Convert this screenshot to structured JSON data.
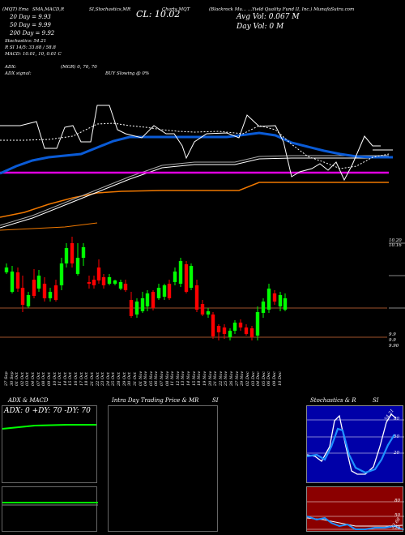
{
  "header": {
    "ticker_tag": "(MQT) Ema",
    "indicators_label": "SMA,MACD,R",
    "site_label": "SI,Stochastics,MR",
    "chart_title": "Charts MQT",
    "company": "(Blackrock Mu... ...Yield Quality Fund II, Inc.) MunafaSutra.com",
    "close": "CL: 10.02",
    "avg_vol": "Avg Vol: 0.067 M",
    "day_vol": "Day Vol: 0   M",
    "ma20": "20  Day = 9.93",
    "ma50": "50  Day = 9.99",
    "ma200": "200  Day = 9.92",
    "stochastics": "Stochastics: 54.21",
    "rsi_line": "R       SI 14/5: 33.68  / 58.8",
    "macd": "MACD: 10.01, 10, 0.01 C",
    "adx": "ADX:",
    "adx_signal": "ADX  signal:",
    "mgr": "(MGR) 0, 70, 70",
    "signal": "BUY Slowing @ 0%"
  },
  "price_axis": {
    "top_a": "10.20",
    "top_b": "10.16",
    "low_a": "9.9",
    "low_b": "9.9",
    "low_c": "9.90"
  },
  "x_labels": [
    "27 Sep",
    "30 Sep",
    "01 Oct",
    "02 Oct",
    "03 Oct",
    "04 Oct",
    "07 Oct",
    "08 Oct",
    "09 Oct",
    "10 Oct",
    "11 Oct",
    "14 Oct",
    "15 Oct",
    "16 Oct",
    "17 Oct",
    "18 Oct",
    "21 Oct",
    "22 Oct",
    "23 Oct",
    "24 Oct",
    "25 Oct",
    "28 Oct",
    "29 Oct",
    "30 Oct",
    "31 Oct",
    "01 Nov",
    "04 Nov",
    "05 Nov",
    "06 Nov",
    "07 Nov",
    "08 Nov",
    "11 Nov",
    "12 Nov",
    "13 Nov",
    "14 Nov",
    "15 Nov",
    "18 Nov",
    "19 Nov",
    "20 Nov",
    "21 Nov",
    "22 Nov",
    "25 Nov",
    "26 Nov",
    "27 Nov",
    "29 Nov",
    "02 Dec",
    "03 Dec",
    "04 Dec",
    "05 Dec",
    "06 Dec",
    "09 Dec",
    "10 Dec"
  ],
  "panels": {
    "adx_title": "ADX  & MACD",
    "adx_values": "ADX: 0  +DY: 70  -DY: 70",
    "intra_title": "Intra  Day Trading Price  & MR",
    "intra_si": "SI",
    "stoch_title": "Stochastics & R",
    "stoch_si": "SI",
    "stoch_val": "54.21",
    "rsi_val": "33.68",
    "stoch_levels": [
      "80",
      "50",
      "20"
    ],
    "rsi_levels": [
      "80",
      "50",
      "20"
    ]
  },
  "colors": {
    "bull": "#00ff00",
    "bear": "#ff0000",
    "ma_blue": "#0a5bd6",
    "ma_magenta": "#e000e0",
    "ma_orange": "#f07800",
    "stoch_bg": "#0000a8",
    "rsi_bg": "#8b0000"
  }
}
